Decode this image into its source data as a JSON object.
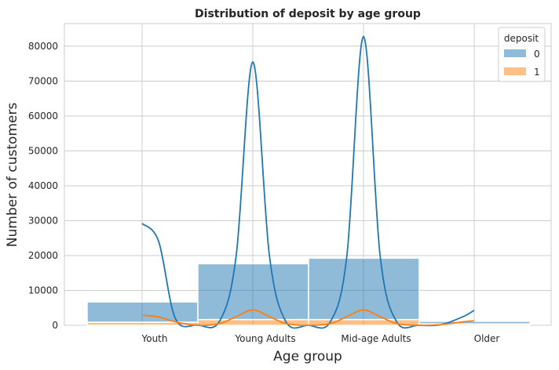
{
  "chart_data": {
    "type": "bar",
    "title": "Distribution of deposit by age group",
    "xlabel": "Age group",
    "ylabel": "Number of customers",
    "categories": [
      "Youth",
      "Young Adults",
      "Mid-age Adults",
      "Older"
    ],
    "ylim": [
      0,
      86500
    ],
    "yticks": [
      0,
      10000,
      20000,
      30000,
      40000,
      50000,
      60000,
      70000,
      80000
    ],
    "grid": true,
    "stacked": true,
    "legend": {
      "title": "deposit",
      "placement": "top-right",
      "entries": [
        "0",
        "1"
      ]
    },
    "series": [
      {
        "name": "0",
        "color": "#1f77b4",
        "values": [
          5800,
          16000,
          17600,
          750
        ],
        "kde": [
          [
            0,
            29200
          ],
          [
            0.15,
            24000
          ],
          [
            0.3,
            2000
          ],
          [
            0.5,
            100
          ],
          [
            0.7,
            1200
          ],
          [
            0.85,
            20000
          ],
          [
            1.0,
            75500
          ],
          [
            1.15,
            20000
          ],
          [
            1.3,
            1000
          ],
          [
            1.5,
            0
          ],
          [
            1.7,
            1000
          ],
          [
            1.85,
            20000
          ],
          [
            2.0,
            82800
          ],
          [
            2.15,
            20000
          ],
          [
            2.3,
            1000
          ],
          [
            2.5,
            0
          ],
          [
            2.7,
            200
          ],
          [
            2.9,
            2500
          ],
          [
            3.0,
            4300
          ]
        ]
      },
      {
        "name": "1",
        "color": "#ff7f0e",
        "values": [
          900,
          1650,
          1650,
          400
        ],
        "kde": [
          [
            0,
            2900
          ],
          [
            0.15,
            2400
          ],
          [
            0.3,
            1000
          ],
          [
            0.5,
            0
          ],
          [
            0.7,
            500
          ],
          [
            0.85,
            2500
          ],
          [
            1.0,
            4400
          ],
          [
            1.15,
            2500
          ],
          [
            1.3,
            500
          ],
          [
            1.5,
            0
          ],
          [
            1.7,
            500
          ],
          [
            1.85,
            2500
          ],
          [
            2.0,
            4400
          ],
          [
            2.15,
            2500
          ],
          [
            2.3,
            500
          ],
          [
            2.5,
            0
          ],
          [
            2.7,
            200
          ],
          [
            2.9,
            1000
          ],
          [
            3.0,
            1300
          ]
        ]
      }
    ]
  }
}
